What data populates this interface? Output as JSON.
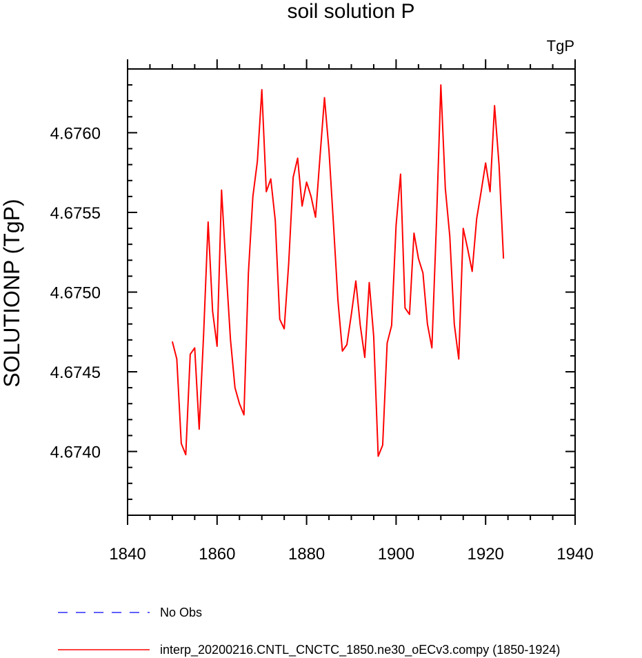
{
  "chart_data": {
    "type": "line",
    "title": "soil solution P",
    "units_label": "TgP",
    "ylabel": "SOLUTIONP  (TgP)",
    "xlabel": "",
    "xlim": [
      1840,
      1940
    ],
    "ylim": [
      4.6736,
      4.6764
    ],
    "x_ticks": [
      1840,
      1860,
      1880,
      1900,
      1920,
      1940
    ],
    "x_tick_labels": [
      "1840",
      "1860",
      "1880",
      "1900",
      "1920",
      "1940"
    ],
    "y_ticks": [
      4.674,
      4.6745,
      4.675,
      4.6755,
      4.676
    ],
    "y_tick_labels": [
      "4.6740",
      "4.6745",
      "4.6750",
      "4.6755",
      "4.6760"
    ],
    "grid": false,
    "legend_position": "bottom",
    "series": [
      {
        "name": "interp_20200216.CNTL_CNCTC_1850.ne30_oECv3.compy (1850-1924)",
        "color": "#ff0000",
        "style": "solid",
        "x": [
          1850,
          1851,
          1852,
          1853,
          1854,
          1855,
          1856,
          1857,
          1858,
          1859,
          1860,
          1861,
          1862,
          1863,
          1864,
          1865,
          1866,
          1867,
          1868,
          1869,
          1870,
          1871,
          1872,
          1873,
          1874,
          1875,
          1876,
          1877,
          1878,
          1879,
          1880,
          1881,
          1882,
          1883,
          1884,
          1885,
          1886,
          1887,
          1888,
          1889,
          1890,
          1891,
          1892,
          1893,
          1894,
          1895,
          1896,
          1897,
          1898,
          1899,
          1900,
          1901,
          1902,
          1903,
          1904,
          1905,
          1906,
          1907,
          1908,
          1909,
          1910,
          1911,
          1912,
          1913,
          1914,
          1915,
          1916,
          1917,
          1918,
          1919,
          1920,
          1921,
          1922,
          1923,
          1924
        ],
        "y": [
          4.67469,
          4.67458,
          4.67405,
          4.67398,
          4.67461,
          4.67465,
          4.67414,
          4.67474,
          4.67544,
          4.67488,
          4.67466,
          4.67564,
          4.67515,
          4.6747,
          4.6744,
          4.6743,
          4.67423,
          4.67512,
          4.6756,
          4.67582,
          4.67627,
          4.67563,
          4.67571,
          4.67545,
          4.67483,
          4.67477,
          4.67518,
          4.67572,
          4.67584,
          4.67554,
          4.67569,
          4.6756,
          4.67547,
          4.67585,
          4.67622,
          4.67589,
          4.67543,
          4.67495,
          4.67463,
          4.67467,
          4.67486,
          4.67507,
          4.67479,
          4.67459,
          4.67506,
          4.67472,
          4.67397,
          4.67404,
          4.67468,
          4.67479,
          4.67542,
          4.67574,
          4.6749,
          4.67486,
          4.67537,
          4.67521,
          4.67512,
          4.6748,
          4.67465,
          4.67542,
          4.6763,
          4.67565,
          4.67535,
          4.6748,
          4.67458,
          4.6754,
          4.67527,
          4.67513,
          4.67546,
          4.67563,
          4.67581,
          4.67563,
          4.67617,
          4.6758,
          4.67521
        ]
      }
    ],
    "legend": [
      {
        "label": "No Obs",
        "color": "#0000ff",
        "style": "dashed"
      },
      {
        "label": "interp_20200216.CNTL_CNCTC_1850.ne30_oECv3.compy (1850-1924)",
        "color": "#ff0000",
        "style": "solid"
      }
    ]
  }
}
